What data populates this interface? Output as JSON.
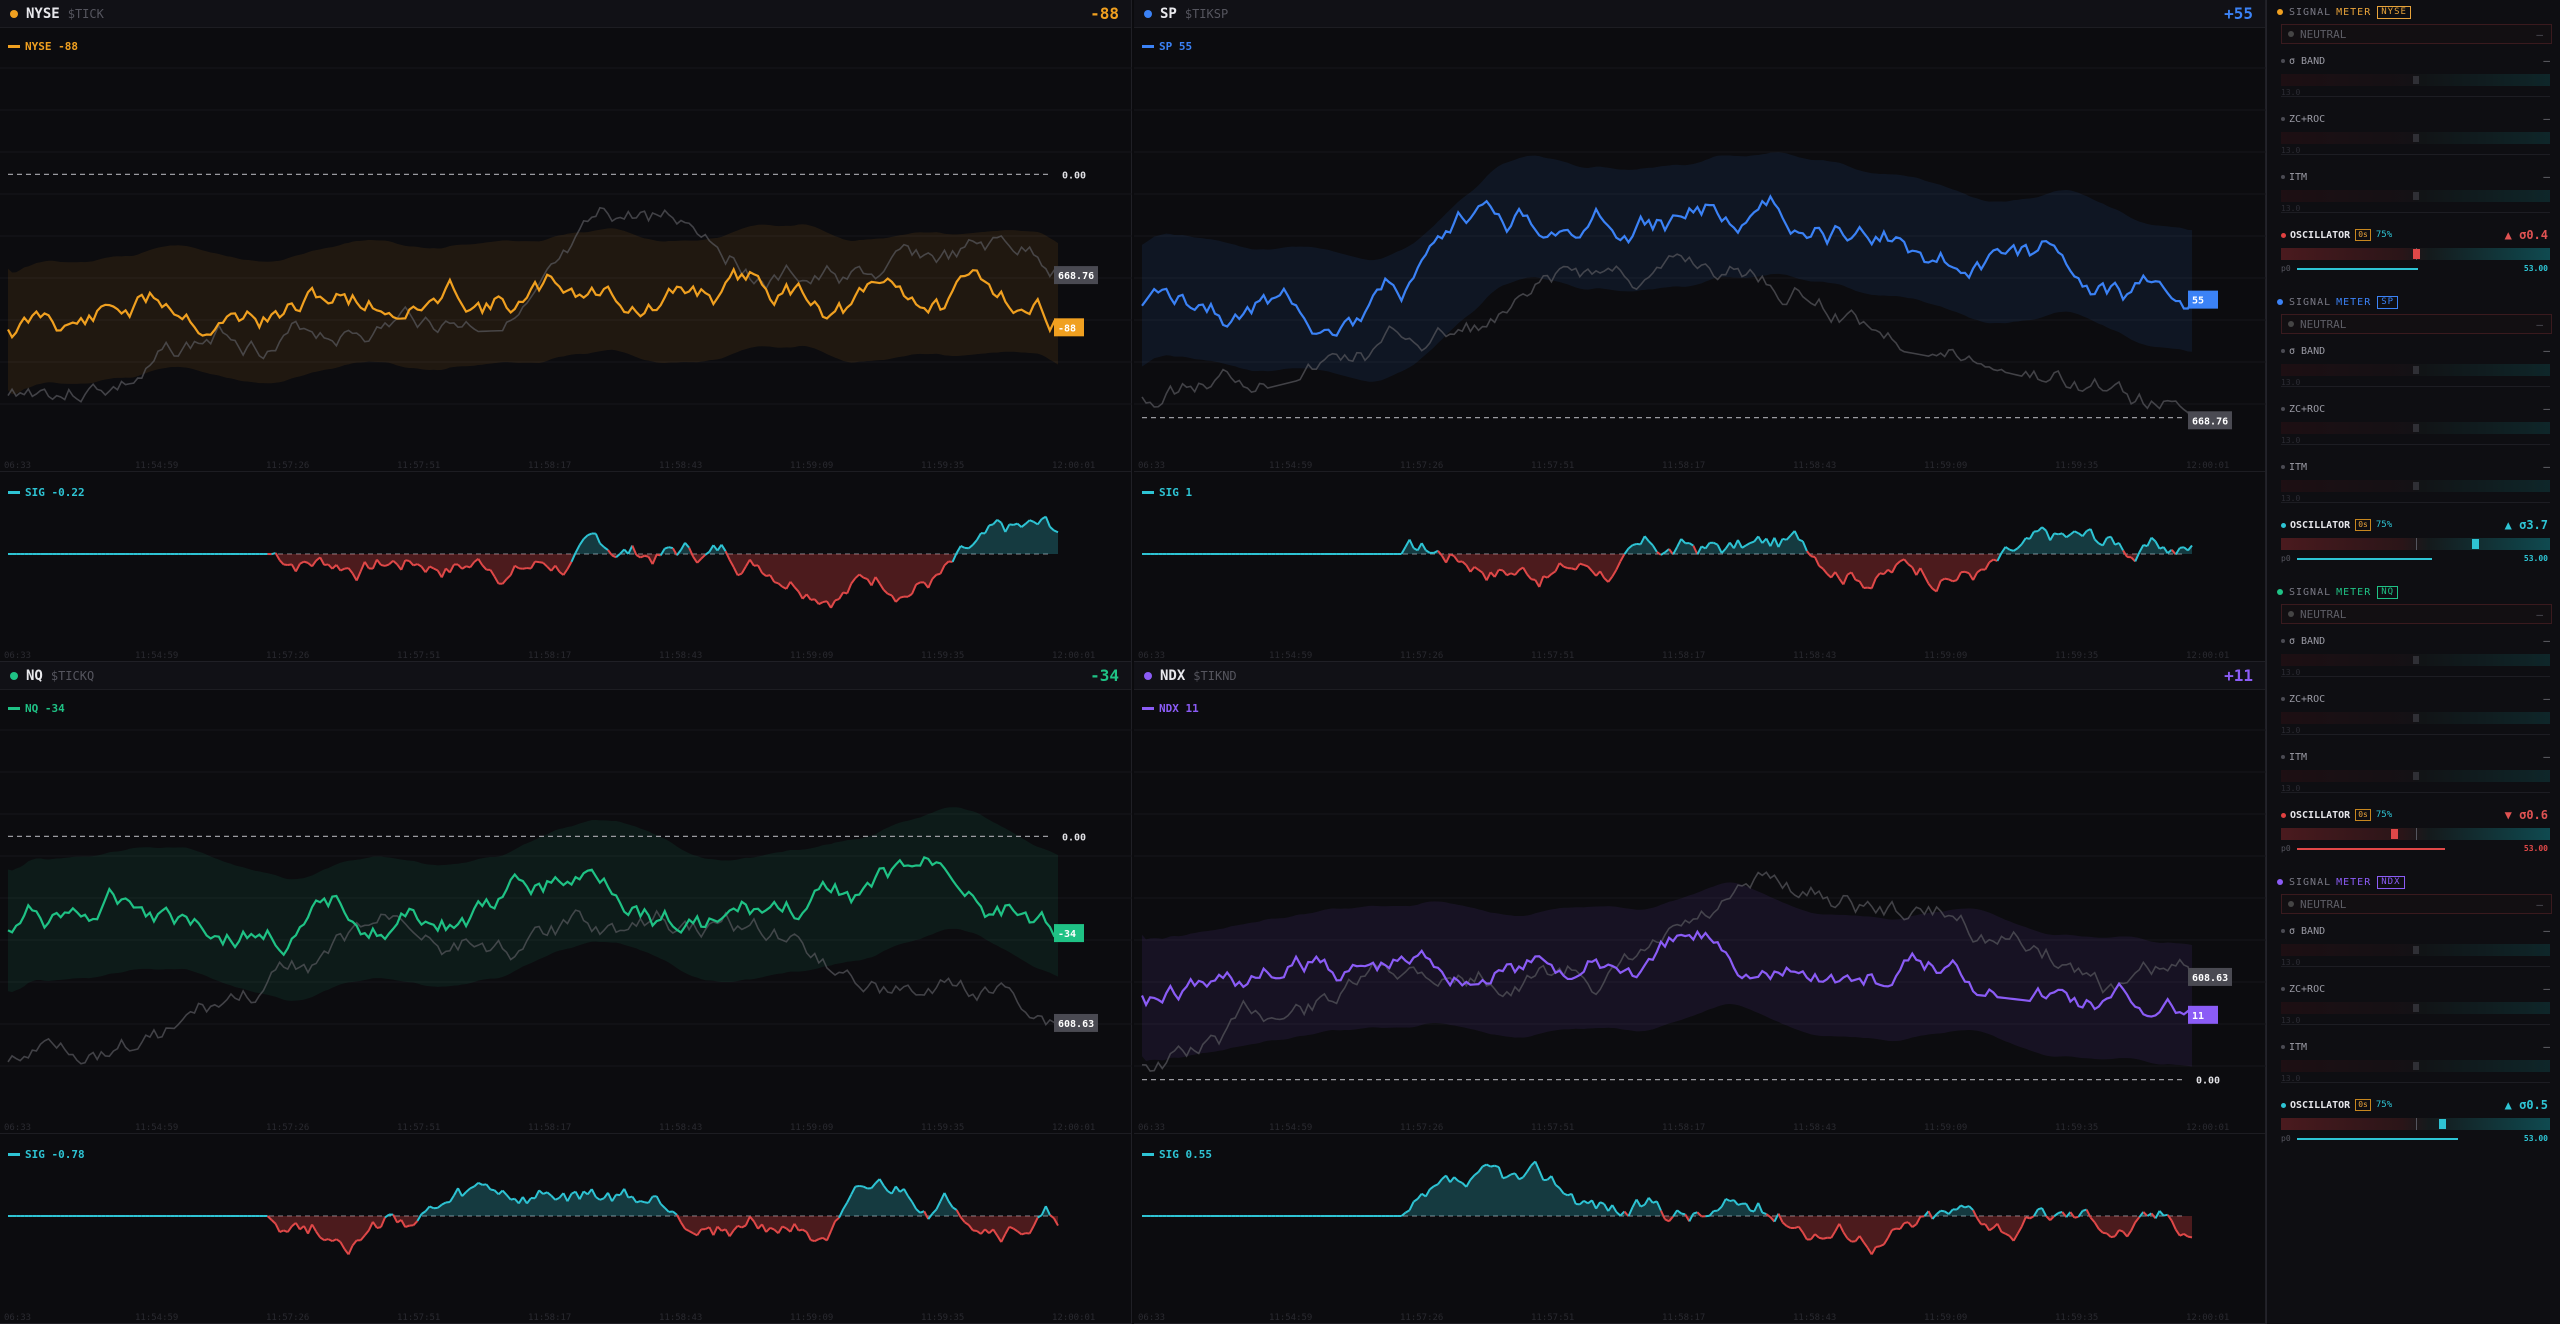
{
  "quadrants": [
    {
      "symbol": "NYSE",
      "ticker": "$TICK",
      "value": "-88",
      "color": "#f0a020",
      "legend": "NYSE -88",
      "sig_legend": "SIG -0.22",
      "ref_label": "0.00",
      "price_label": "668.76",
      "last_label": "-88",
      "times": [
        "06:33",
        "11:54:59",
        "11:57:26",
        "11:57:51",
        "11:58:17",
        "11:58:43",
        "11:59:09",
        "11:59:35",
        "12:00:01"
      ]
    },
    {
      "symbol": "SP",
      "ticker": "$TIKSP",
      "value": "+55",
      "color": "#3b82f6",
      "legend": "SP 55",
      "sig_legend": "SIG 1",
      "ref_label": "0.00",
      "price_label": "668.76",
      "last_label": "55",
      "times": [
        "06:33",
        "11:54:59",
        "11:57:26",
        "11:57:51",
        "11:58:17",
        "11:58:43",
        "11:59:09",
        "11:59:35",
        "12:00:01"
      ]
    },
    {
      "symbol": "NQ",
      "ticker": "$TICKQ",
      "value": "-34",
      "color": "#1fc285",
      "legend": "NQ -34",
      "sig_legend": "SIG -0.78",
      "ref_label": "0.00",
      "price_label": "608.63",
      "last_label": "-34",
      "times": [
        "06:33",
        "11:54:59",
        "11:57:26",
        "11:57:51",
        "11:58:17",
        "11:58:43",
        "11:59:09",
        "11:59:35",
        "12:00:01"
      ]
    },
    {
      "symbol": "NDX",
      "ticker": "$TIKND",
      "value": "+11",
      "color": "#8b5cf6",
      "legend": "NDX 11",
      "sig_legend": "SIG 0.55",
      "ref_label": "0.00",
      "price_label": "608.63",
      "last_label": "11",
      "times": [
        "06:33",
        "11:54:59",
        "11:57:26",
        "11:57:51",
        "11:58:17",
        "11:58:43",
        "11:59:09",
        "11:59:35",
        "12:00:01"
      ]
    }
  ],
  "sidebar": {
    "meters": [
      {
        "title_a": "SIGNAL",
        "title_b": "METER",
        "tag": "NYSE",
        "accent": "#e8a33a",
        "dot": "#f0a020",
        "status": "NEUTRAL",
        "status_right": "—",
        "rows": [
          {
            "label": "σ BAND",
            "dash": "—",
            "min": "13.0"
          },
          {
            "label": "ZC+ROC",
            "dash": "—",
            "min": "13.0"
          },
          {
            "label": "ITM",
            "dash": "—",
            "min": "13.0"
          }
        ],
        "osc": {
          "label": "OSCILLATOR",
          "pill": "0s",
          "pct": "75%",
          "value": "▲ σ0.4",
          "value_color": "#e05252",
          "dot": "#e04040",
          "knob": 0.5,
          "knob_color": "#e04848",
          "sub_left": "p0",
          "sub_right": "53.00",
          "line_color": "#2ec4d4"
        }
      },
      {
        "title_a": "SIGNAL",
        "title_b": "METER",
        "tag": "SP",
        "accent": "#3b82f6",
        "dot": "#3b82f6",
        "status": "NEUTRAL",
        "status_right": "—",
        "rows": [
          {
            "label": "σ BAND",
            "dash": "—",
            "min": "13.0"
          },
          {
            "label": "ZC+ROC",
            "dash": "—",
            "min": "13.0"
          },
          {
            "label": "ITM",
            "dash": "—",
            "min": "13.0"
          }
        ],
        "osc": {
          "label": "OSCILLATOR",
          "pill": "0s",
          "pct": "75%",
          "value": "▲ σ3.7",
          "value_color": "#2ec4d4",
          "dot": "#2ec4d4",
          "knob": 0.72,
          "knob_color": "#2ec4d4",
          "sub_left": "p0",
          "sub_right": "53.00",
          "line_color": "#2ec4d4"
        }
      },
      {
        "title_a": "SIGNAL",
        "title_b": "METER",
        "tag": "NQ",
        "accent": "#1fc285",
        "dot": "#1fc285",
        "status": "NEUTRAL",
        "status_right": "—",
        "rows": [
          {
            "label": "σ BAND",
            "dash": "—",
            "min": "13.0"
          },
          {
            "label": "ZC+ROC",
            "dash": "—",
            "min": "13.0"
          },
          {
            "label": "ITM",
            "dash": "—",
            "min": "13.0"
          }
        ],
        "osc": {
          "label": "OSCILLATOR",
          "pill": "0s",
          "pct": "75%",
          "value": "▼ σ0.6",
          "value_color": "#e05252",
          "dot": "#e04040",
          "knob": 0.42,
          "knob_color": "#e04848",
          "sub_left": "p0",
          "sub_right": "53.00",
          "line_color": "#e04848"
        }
      },
      {
        "title_a": "SIGNAL",
        "title_b": "METER",
        "tag": "NDX",
        "accent": "#8b5cf6",
        "dot": "#8b5cf6",
        "status": "NEUTRAL",
        "status_right": "—",
        "rows": [
          {
            "label": "σ BAND",
            "dash": "—",
            "min": "13.0"
          },
          {
            "label": "ZC+ROC",
            "dash": "—",
            "min": "13.0"
          },
          {
            "label": "ITM",
            "dash": "—",
            "min": "13.0"
          }
        ],
        "osc": {
          "label": "OSCILLATOR",
          "pill": "0s",
          "pct": "75%",
          "value": "▲ σ0.5",
          "value_color": "#2ec4d4",
          "dot": "#2ec4d4",
          "knob": 0.6,
          "knob_color": "#2ec4d4",
          "sub_left": "p0",
          "sub_right": "53.00",
          "line_color": "#2ec4d4"
        }
      }
    ]
  }
}
